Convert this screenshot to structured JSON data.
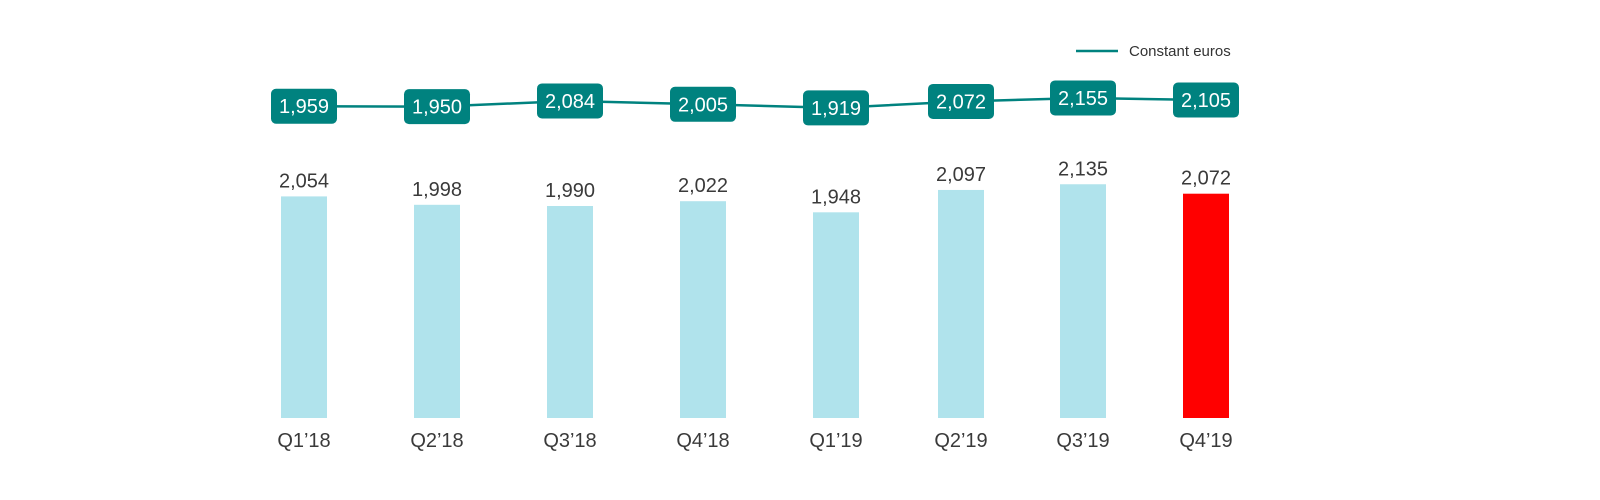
{
  "chart_data": {
    "type": "bar",
    "categories": [
      "Q1’18",
      "Q2’18",
      "Q3’18",
      "Q4’18",
      "Q1’19",
      "Q2’19",
      "Q3’19",
      "Q4’19"
    ],
    "series": [
      {
        "kind": "bar",
        "values": [
          2054,
          1998,
          1990,
          2022,
          1948,
          2097,
          2135,
          2072
        ],
        "labels": [
          "2,054",
          "1,998",
          "1,990",
          "2,022",
          "1,948",
          "2,097",
          "2,135",
          "2,072"
        ],
        "highlight_index": 7
      },
      {
        "kind": "line",
        "name": "Constant euros",
        "values": [
          1959,
          1950,
          2084,
          2005,
          1919,
          2072,
          2155,
          2105
        ],
        "labels": [
          "1,959",
          "1,950",
          "2,084",
          "2,005",
          "1,919",
          "2,072",
          "2,155",
          "2,105"
        ]
      }
    ],
    "legend": {
      "position": "top-right",
      "entries": [
        "Constant euros"
      ]
    },
    "grid": false,
    "colors": {
      "bar": "#b0e3ec",
      "highlight": "#ff0000",
      "line": "#00827f"
    }
  }
}
